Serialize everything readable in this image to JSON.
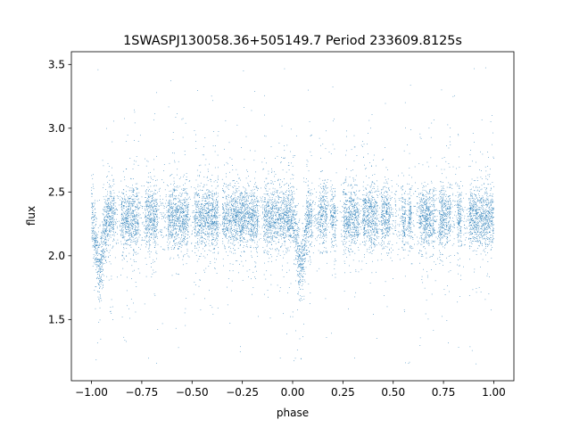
{
  "chart_data": {
    "type": "scatter",
    "title": "1SWASPJ130058.36+505149.7 Period 233609.8125s",
    "xlabel": "phase",
    "ylabel": "flux",
    "xlim": [
      -1.1,
      1.1
    ],
    "ylim": [
      1.02,
      3.6
    ],
    "xticks": [
      {
        "value": -1.0,
        "label": "−1.00"
      },
      {
        "value": -0.75,
        "label": "−0.75"
      },
      {
        "value": -0.5,
        "label": "−0.50"
      },
      {
        "value": -0.25,
        "label": "−0.25"
      },
      {
        "value": 0.0,
        "label": "0.00"
      },
      {
        "value": 0.25,
        "label": "0.25"
      },
      {
        "value": 0.5,
        "label": "0.50"
      },
      {
        "value": 0.75,
        "label": "0.75"
      },
      {
        "value": 1.0,
        "label": "1.00"
      }
    ],
    "yticks": [
      {
        "value": 1.5,
        "label": "1.5"
      },
      {
        "value": 2.0,
        "label": "2.0"
      },
      {
        "value": 2.5,
        "label": "2.5"
      },
      {
        "value": 3.0,
        "label": "3.0"
      },
      {
        "value": 3.5,
        "label": "3.5"
      }
    ],
    "grid": false,
    "marker_color": "#1f77b4",
    "series": [
      {
        "phase_range": [
          -1.0,
          1.0
        ],
        "baseline_flux": 2.3,
        "baseline_spread": 0.12,
        "flux_min": 1.15,
        "flux_max": 3.48,
        "eclipses": [
          {
            "center_phase": -0.96,
            "min_flux": 1.75
          },
          {
            "center_phase": 0.04,
            "min_flux": 1.75
          }
        ]
      }
    ]
  }
}
